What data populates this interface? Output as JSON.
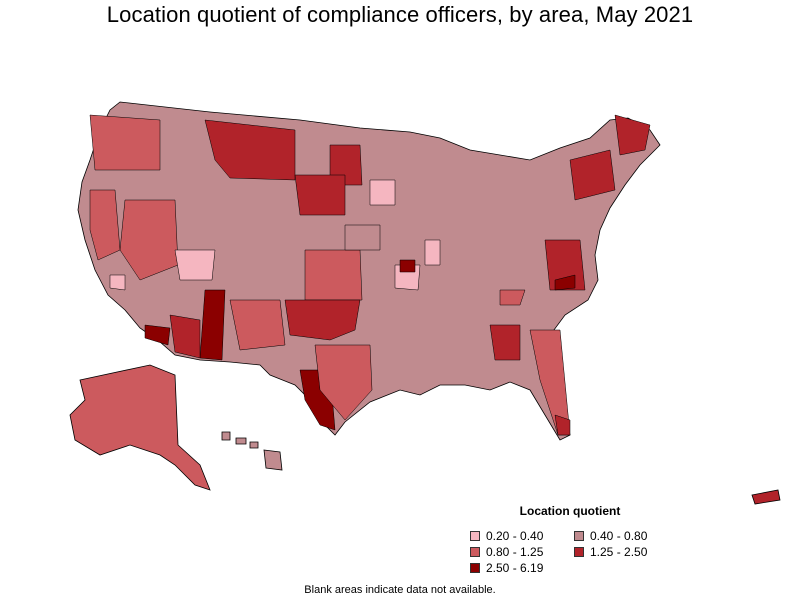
{
  "title": "Location quotient of compliance officers, by area, May 2021",
  "legend": {
    "title": "Location quotient",
    "items": [
      {
        "label": "0.20 - 0.40",
        "color": "#f5b6c0"
      },
      {
        "label": "0.40 - 0.80",
        "color": "#c08b8f"
      },
      {
        "label": "0.80 - 1.25",
        "color": "#cc5a5e"
      },
      {
        "label": "1.25 - 2.50",
        "color": "#b1232a"
      },
      {
        "label": "2.50 - 6.19",
        "color": "#8b0000"
      }
    ]
  },
  "footnote": "Blank areas indicate data not available.",
  "map": {
    "regions": [
      {
        "name": "lower-48",
        "fill": "#c08b8f"
      },
      {
        "name": "alaska",
        "fill": "#cc5a5e"
      },
      {
        "name": "hawaii",
        "fill": "#c08b8f"
      },
      {
        "name": "puerto-rico",
        "fill": "#b1232a"
      }
    ]
  }
}
